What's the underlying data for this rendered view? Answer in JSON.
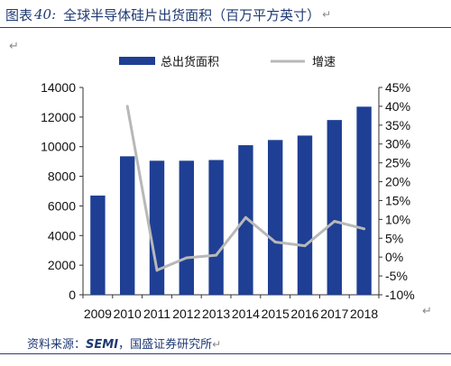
{
  "header": {
    "figure_label": "图表",
    "figure_number": "40:",
    "title": "全球半导体硅片出货面积（百万平方英寸）",
    "return_mark": "↵"
  },
  "return_marks": [
    "↵",
    "↵"
  ],
  "source": {
    "label": "资料来源：",
    "org": "SEMI",
    "sep": "，",
    "publisher": "国盛证券研究所",
    "return_mark": "↵"
  },
  "colors": {
    "bar": "#1f3f94",
    "line": "#b8b8b8",
    "text": "#1f3a73"
  },
  "chart_data": {
    "type": "bar",
    "categories": [
      "2009",
      "2010",
      "2011",
      "2012",
      "2013",
      "2014",
      "2015",
      "2016",
      "2017",
      "2018"
    ],
    "series": [
      {
        "name": "总出货面积",
        "type": "bar",
        "axis": "left",
        "values": [
          6700,
          9350,
          9050,
          9050,
          9100,
          10100,
          10450,
          10750,
          11800,
          12700
        ]
      },
      {
        "name": "增速",
        "type": "line",
        "axis": "right",
        "values": [
          null,
          40,
          -3.5,
          -0.2,
          0.5,
          10.5,
          4,
          3,
          9.5,
          7.5
        ]
      }
    ],
    "ylim": [
      0,
      14000
    ],
    "yticks": [
      "0",
      "2000",
      "4000",
      "6000",
      "8000",
      "10000",
      "12000",
      "14000"
    ],
    "y2lim": [
      -10,
      45
    ],
    "y2ticks": [
      "-10%",
      "-5%",
      "0%",
      "5%",
      "10%",
      "15%",
      "20%",
      "25%",
      "30%",
      "35%",
      "40%",
      "45%"
    ],
    "legend_position": "top"
  }
}
